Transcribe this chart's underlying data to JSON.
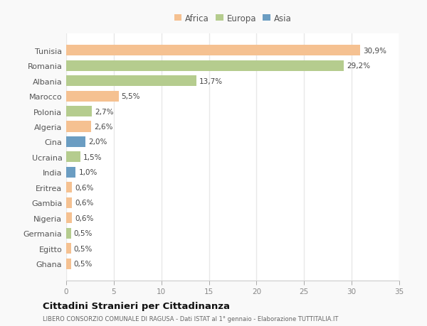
{
  "countries": [
    "Tunisia",
    "Romania",
    "Albania",
    "Marocco",
    "Polonia",
    "Algeria",
    "Cina",
    "Ucraina",
    "India",
    "Eritrea",
    "Gambia",
    "Nigeria",
    "Germania",
    "Egitto",
    "Ghana"
  ],
  "values": [
    30.9,
    29.2,
    13.7,
    5.5,
    2.7,
    2.6,
    2.0,
    1.5,
    1.0,
    0.6,
    0.6,
    0.6,
    0.5,
    0.5,
    0.5
  ],
  "labels": [
    "30,9%",
    "29,2%",
    "13,7%",
    "5,5%",
    "2,7%",
    "2,6%",
    "2,0%",
    "1,5%",
    "1,0%",
    "0,6%",
    "0,6%",
    "0,6%",
    "0,5%",
    "0,5%",
    "0,5%"
  ],
  "continents": [
    "Africa",
    "Europa",
    "Europa",
    "Africa",
    "Europa",
    "Africa",
    "Asia",
    "Europa",
    "Asia",
    "Africa",
    "Africa",
    "Africa",
    "Europa",
    "Africa",
    "Africa"
  ],
  "continent_colors": {
    "Africa": "#F5C191",
    "Europa": "#B5CC8E",
    "Asia": "#6B9DC2"
  },
  "legend_labels": [
    "Africa",
    "Europa",
    "Asia"
  ],
  "legend_colors": [
    "#F5C191",
    "#B5CC8E",
    "#6B9DC2"
  ],
  "xlim": [
    0,
    35
  ],
  "xticks": [
    0,
    5,
    10,
    15,
    20,
    25,
    30,
    35
  ],
  "title": "Cittadini Stranieri per Cittadinanza",
  "subtitle": "LIBERO CONSORZIO COMUNALE DI RAGUSA - Dati ISTAT al 1° gennaio - Elaborazione TUTTITALIA.IT",
  "fig_bg": "#f9f9f9",
  "plot_bg": "#ffffff",
  "grid_color": "#e8e8e8"
}
